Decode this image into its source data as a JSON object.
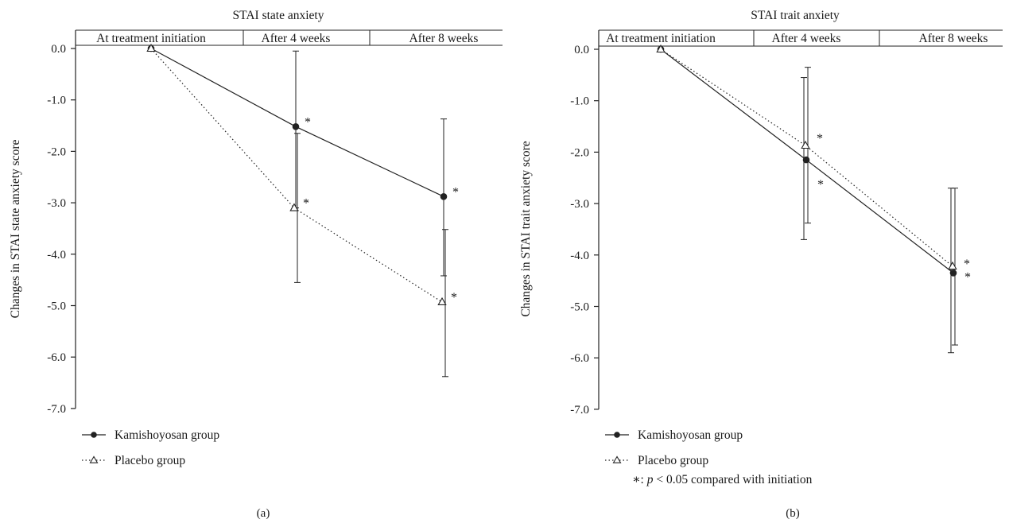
{
  "chart_data": [
    {
      "type": "line",
      "panel": "(a)",
      "title": "STAI state anxiety",
      "ylabel": "Changes in STAI state anxiety score",
      "categories": [
        "At treatment initiation",
        "After 4 weeks",
        "After 8 weeks"
      ],
      "ylim": [
        -7.0,
        0.0
      ],
      "yticks": [
        "0.0",
        "-1.0",
        "-2.0",
        "-3.0",
        "-4.0",
        "-5.0",
        "-6.0",
        "-7.0"
      ],
      "series": [
        {
          "name": "Kamishoyosan group",
          "line": "solid",
          "marker": "filled-circle",
          "values": [
            0.0,
            -1.52,
            -2.88
          ],
          "err_upper": [
            null,
            -0.05,
            -1.37
          ],
          "err_lower": [
            null,
            -3.1,
            -4.42
          ],
          "significant": [
            false,
            true,
            true
          ]
        },
        {
          "name": "Placebo group",
          "line": "dotted",
          "marker": "open-triangle",
          "values": [
            0.0,
            -3.1,
            -4.93
          ],
          "err_upper": [
            null,
            -1.65,
            -3.52
          ],
          "err_lower": [
            null,
            -4.55,
            -6.38
          ],
          "significant": [
            false,
            true,
            true
          ]
        }
      ],
      "legend_position": "bottom-left",
      "caption": "(a)"
    },
    {
      "type": "line",
      "panel": "(b)",
      "title": "STAI trait anxiety",
      "ylabel": "Changes in STAI trait anxiety score",
      "categories": [
        "At treatment initiation",
        "After 4 weeks",
        "After 8 weeks"
      ],
      "ylim": [
        -7.0,
        0.0
      ],
      "yticks": [
        "0.0",
        "-1.0",
        "-2.0",
        "-3.0",
        "-4.0",
        "-5.0",
        "-6.0",
        "-7.0"
      ],
      "series": [
        {
          "name": "Kamishoyosan group",
          "line": "solid",
          "marker": "filled-circle",
          "values": [
            0.0,
            -2.15,
            -4.35
          ],
          "err_upper": [
            null,
            -0.55,
            -2.7
          ],
          "err_lower": [
            null,
            -3.7,
            -5.9
          ],
          "significant": [
            false,
            true,
            true
          ]
        },
        {
          "name": "Placebo group",
          "line": "dotted",
          "marker": "open-triangle",
          "values": [
            0.0,
            -1.87,
            -4.22
          ],
          "err_upper": [
            null,
            -0.35,
            -2.7
          ],
          "err_lower": [
            null,
            -3.38,
            -5.75
          ],
          "significant": [
            false,
            true,
            true
          ]
        }
      ],
      "legend_position": "bottom-left",
      "footnote": {
        "star": "∗",
        "prefix": ": ",
        "p": "p",
        "rest": " < 0.05 compared with initiation"
      },
      "caption": "(b)"
    }
  ]
}
